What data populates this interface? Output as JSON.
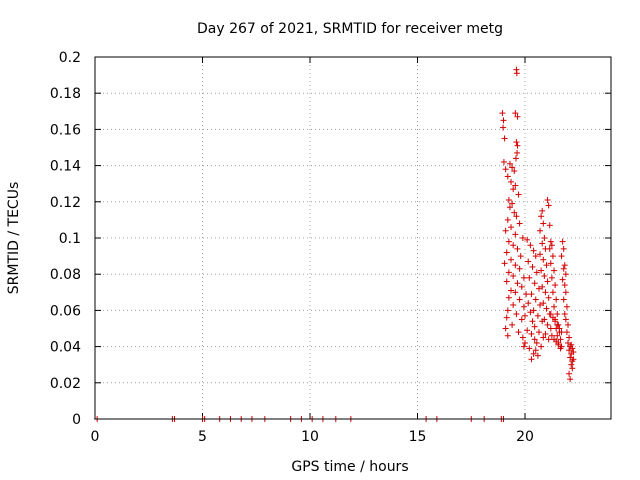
{
  "chart_data": {
    "type": "scatter",
    "title": "Day 267 of 2021, SRMTID for receiver metg",
    "xlabel": "GPS time / hours",
    "ylabel": "SRMTID / TECUs",
    "xlim": [
      0,
      24
    ],
    "ylim": [
      0,
      0.2
    ],
    "x_ticks": [
      0,
      5,
      10,
      15,
      20
    ],
    "x_tick_labels": [
      "0",
      "5",
      "10",
      "15",
      "20"
    ],
    "y_ticks": [
      0,
      0.02,
      0.04,
      0.06,
      0.08,
      0.1,
      0.12,
      0.14,
      0.16,
      0.18,
      0.2
    ],
    "y_tick_labels": [
      "0",
      "0.02",
      "0.04",
      "0.06",
      "0.08",
      "0.1",
      "0.12",
      "0.14",
      "0.16",
      "0.18",
      "0.2"
    ],
    "grid": true,
    "marker": "+",
    "color": "#d40000",
    "series": [
      {
        "name": "SRMTID",
        "points": [
          [
            0.1,
            0
          ],
          [
            3.6,
            0
          ],
          [
            3.7,
            0
          ],
          [
            5.0,
            0
          ],
          [
            5.1,
            0
          ],
          [
            5.8,
            0
          ],
          [
            6.3,
            0
          ],
          [
            6.8,
            0
          ],
          [
            7.3,
            0
          ],
          [
            7.9,
            0
          ],
          [
            9.1,
            0
          ],
          [
            9.6,
            0
          ],
          [
            10.1,
            0
          ],
          [
            10.6,
            0
          ],
          [
            11.2,
            0
          ],
          [
            11.9,
            0
          ],
          [
            15.4,
            0
          ],
          [
            15.9,
            0
          ],
          [
            17.5,
            0
          ],
          [
            18.1,
            0
          ],
          [
            18.9,
            0
          ],
          [
            19.0,
            0
          ],
          [
            18.95,
            0.169
          ],
          [
            19.0,
            0.165
          ],
          [
            18.98,
            0.161
          ],
          [
            19.05,
            0.155
          ],
          [
            19.02,
            0.142
          ],
          [
            19.1,
            0.138
          ],
          [
            19.6,
            0.193
          ],
          [
            19.62,
            0.191
          ],
          [
            19.55,
            0.169
          ],
          [
            19.65,
            0.167
          ],
          [
            19.6,
            0.153
          ],
          [
            19.65,
            0.151
          ],
          [
            19.63,
            0.147
          ],
          [
            19.58,
            0.144
          ],
          [
            19.3,
            0.141
          ],
          [
            19.4,
            0.139
          ],
          [
            19.5,
            0.137
          ],
          [
            19.2,
            0.134
          ],
          [
            19.35,
            0.131
          ],
          [
            19.55,
            0.129
          ],
          [
            19.45,
            0.127
          ],
          [
            19.7,
            0.124
          ],
          [
            19.25,
            0.121
          ],
          [
            19.4,
            0.119
          ],
          [
            19.3,
            0.117
          ],
          [
            19.5,
            0.114
          ],
          [
            19.6,
            0.112
          ],
          [
            19.2,
            0.11
          ],
          [
            19.75,
            0.108
          ],
          [
            19.35,
            0.106
          ],
          [
            19.1,
            0.104
          ],
          [
            19.55,
            0.102
          ],
          [
            19.9,
            0.1
          ],
          [
            19.25,
            0.098
          ],
          [
            19.45,
            0.096
          ],
          [
            19.65,
            0.094
          ],
          [
            19.15,
            0.092
          ],
          [
            19.8,
            0.09
          ],
          [
            19.35,
            0.088
          ],
          [
            19.05,
            0.086
          ],
          [
            19.55,
            0.085
          ],
          [
            19.75,
            0.083
          ],
          [
            19.25,
            0.081
          ],
          [
            19.45,
            0.079
          ],
          [
            19.95,
            0.078
          ],
          [
            19.15,
            0.076
          ],
          [
            19.65,
            0.075
          ],
          [
            19.85,
            0.073
          ],
          [
            19.35,
            0.071
          ],
          [
            19.55,
            0.07
          ],
          [
            20.05,
            0.069
          ],
          [
            19.25,
            0.067
          ],
          [
            19.75,
            0.066
          ],
          [
            20.15,
            0.064
          ],
          [
            19.45,
            0.063
          ],
          [
            19.95,
            0.062
          ],
          [
            19.2,
            0.06
          ],
          [
            20.25,
            0.059
          ],
          [
            19.6,
            0.058
          ],
          [
            20.0,
            0.057
          ],
          [
            19.15,
            0.056
          ],
          [
            19.85,
            0.055
          ],
          [
            20.35,
            0.054
          ],
          [
            19.4,
            0.052
          ],
          [
            19.1,
            0.05
          ],
          [
            20.1,
            0.049
          ],
          [
            19.7,
            0.048
          ],
          [
            20.3,
            0.047
          ],
          [
            19.2,
            0.046
          ],
          [
            19.9,
            0.045
          ],
          [
            20.45,
            0.044
          ],
          [
            20.0,
            0.042
          ],
          [
            19.95,
            0.04
          ],
          [
            20.2,
            0.039
          ],
          [
            20.5,
            0.038
          ],
          [
            20.4,
            0.036
          ],
          [
            20.6,
            0.035
          ],
          [
            20.3,
            0.033
          ],
          [
            20.1,
            0.099
          ],
          [
            20.25,
            0.096
          ],
          [
            20.4,
            0.093
          ],
          [
            20.5,
            0.09
          ],
          [
            20.15,
            0.087
          ],
          [
            20.35,
            0.084
          ],
          [
            20.55,
            0.081
          ],
          [
            20.2,
            0.078
          ],
          [
            20.45,
            0.075
          ],
          [
            20.65,
            0.072
          ],
          [
            20.3,
            0.069
          ],
          [
            20.5,
            0.066
          ],
          [
            20.7,
            0.063
          ],
          [
            20.4,
            0.06
          ],
          [
            20.6,
            0.057
          ],
          [
            20.8,
            0.054
          ],
          [
            20.45,
            0.051
          ],
          [
            20.65,
            0.048
          ],
          [
            20.85,
            0.045
          ],
          [
            20.55,
            0.042
          ],
          [
            20.75,
            0.04
          ],
          [
            20.8,
            0.115
          ],
          [
            20.75,
            0.112
          ],
          [
            20.85,
            0.108
          ],
          [
            20.7,
            0.104
          ],
          [
            20.9,
            0.1
          ],
          [
            20.8,
            0.097
          ],
          [
            20.95,
            0.094
          ],
          [
            20.7,
            0.091
          ],
          [
            20.85,
            0.088
          ],
          [
            21.0,
            0.085
          ],
          [
            20.75,
            0.082
          ],
          [
            20.9,
            0.079
          ],
          [
            21.05,
            0.076
          ],
          [
            20.8,
            0.073
          ],
          [
            20.95,
            0.07
          ],
          [
            21.1,
            0.067
          ],
          [
            20.85,
            0.064
          ],
          [
            21.0,
            0.061
          ],
          [
            21.15,
            0.058
          ],
          [
            20.9,
            0.055
          ],
          [
            21.05,
            0.052
          ],
          [
            21.2,
            0.05
          ],
          [
            20.95,
            0.047
          ],
          [
            21.1,
            0.044
          ],
          [
            21.05,
            0.121
          ],
          [
            21.1,
            0.118
          ],
          [
            21.15,
            0.107
          ],
          [
            21.2,
            0.098
          ],
          [
            21.25,
            0.096
          ],
          [
            21.15,
            0.094
          ],
          [
            21.3,
            0.09
          ],
          [
            21.2,
            0.086
          ],
          [
            21.35,
            0.082
          ],
          [
            21.25,
            0.078
          ],
          [
            21.4,
            0.074
          ],
          [
            21.3,
            0.07
          ],
          [
            21.45,
            0.066
          ],
          [
            21.35,
            0.062
          ],
          [
            21.5,
            0.058
          ],
          [
            21.4,
            0.055
          ],
          [
            21.55,
            0.052
          ],
          [
            21.45,
            0.05
          ],
          [
            21.6,
            0.048
          ],
          [
            21.5,
            0.046
          ],
          [
            21.65,
            0.044
          ],
          [
            21.55,
            0.042
          ],
          [
            21.7,
            0.04
          ],
          [
            21.2,
            0.058
          ],
          [
            21.3,
            0.056
          ],
          [
            21.4,
            0.054
          ],
          [
            21.5,
            0.052
          ],
          [
            21.6,
            0.05
          ],
          [
            21.7,
            0.048
          ],
          [
            21.25,
            0.046
          ],
          [
            21.35,
            0.044
          ],
          [
            21.45,
            0.043
          ],
          [
            21.55,
            0.041
          ],
          [
            21.65,
            0.039
          ],
          [
            21.75,
            0.098
          ],
          [
            21.8,
            0.094
          ],
          [
            21.7,
            0.09
          ],
          [
            21.85,
            0.085
          ],
          [
            21.8,
            0.083
          ],
          [
            21.9,
            0.08
          ],
          [
            21.75,
            0.077
          ],
          [
            21.85,
            0.074
          ],
          [
            21.9,
            0.07
          ],
          [
            21.8,
            0.066
          ],
          [
            21.95,
            0.062
          ],
          [
            21.85,
            0.058
          ],
          [
            21.9,
            0.055
          ],
          [
            22.0,
            0.052
          ],
          [
            21.95,
            0.048
          ],
          [
            22.05,
            0.045
          ],
          [
            22.0,
            0.042
          ],
          [
            22.1,
            0.04
          ],
          [
            22.05,
            0.038
          ],
          [
            22.15,
            0.036
          ],
          [
            22.1,
            0.034
          ],
          [
            22.2,
            0.032
          ],
          [
            22.15,
            0.03
          ],
          [
            22.2,
            0.028
          ],
          [
            22.05,
            0.025
          ],
          [
            22.1,
            0.022
          ],
          [
            22.2,
            0.039
          ],
          [
            22.25,
            0.037
          ],
          [
            22.15,
            0.041
          ],
          [
            22.25,
            0.033
          ]
        ]
      }
    ]
  }
}
